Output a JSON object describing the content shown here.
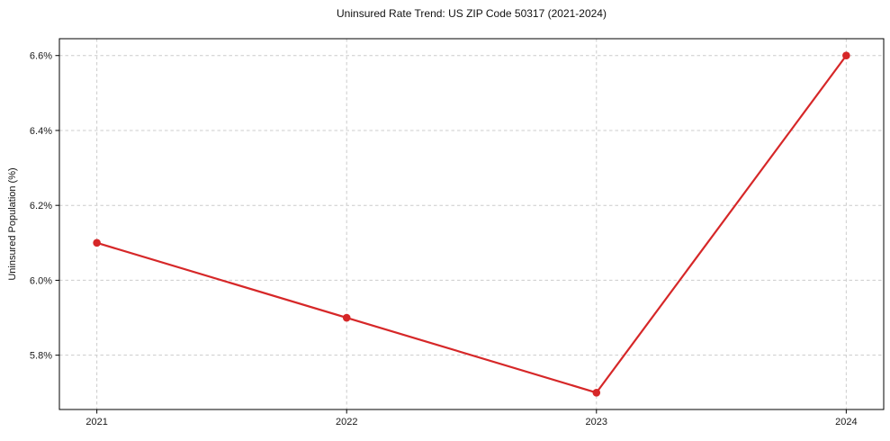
{
  "chart_data": {
    "type": "line",
    "title": "Uninsured Rate Trend: US ZIP Code 50317 (2021-2024)",
    "xlabel": "",
    "ylabel": "Uninsured Population (%)",
    "x": [
      2021,
      2022,
      2023,
      2024
    ],
    "values": [
      6.1,
      5.9,
      5.7,
      6.6
    ],
    "x_ticks": [
      2021,
      2022,
      2023,
      2024
    ],
    "x_tick_labels": [
      "2021",
      "2022",
      "2023",
      "2024"
    ],
    "y_ticks": [
      5.8,
      6.0,
      6.2,
      6.4,
      6.6
    ],
    "y_tick_labels": [
      "5.8%",
      "6.0%",
      "6.2%",
      "6.4%",
      "6.6%"
    ],
    "xlim": [
      2020.85,
      2024.15
    ],
    "ylim": [
      5.655,
      6.645
    ],
    "grid": true,
    "legend": "none",
    "line_color": "#d62728",
    "grid_color": "#cccccc",
    "spine_color": "#000000",
    "tick_label_color": "#1a1a1a",
    "marker": "circle"
  }
}
